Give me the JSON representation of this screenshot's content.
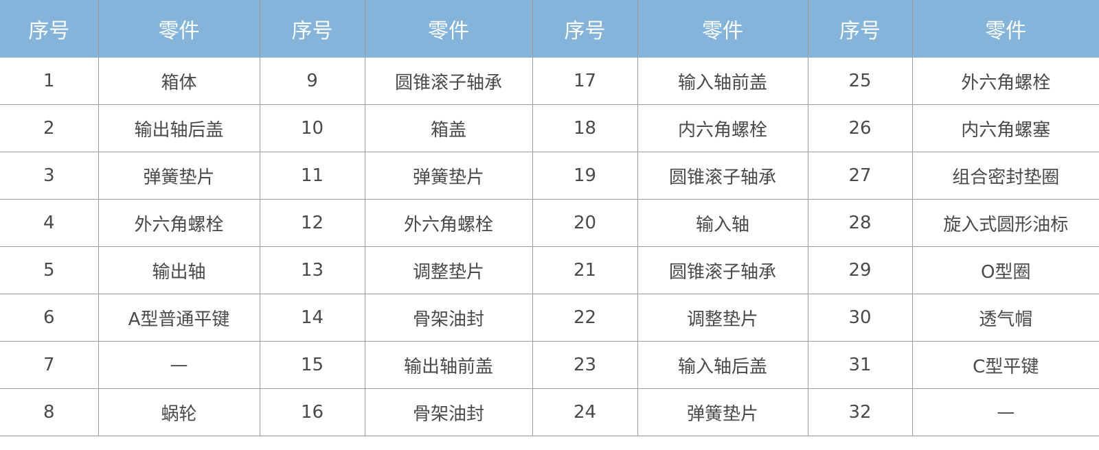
{
  "header": {
    "num": "序号",
    "part": "零件"
  },
  "theme": {
    "header_bg": "#84b4da"
  },
  "columns": [
    [
      [
        "1",
        "箱体"
      ],
      [
        "2",
        "输出轴后盖"
      ],
      [
        "3",
        "弹簧垫片"
      ],
      [
        "4",
        "外六角螺栓"
      ],
      [
        "5",
        "输出轴"
      ],
      [
        "6",
        "A型普通平键"
      ],
      [
        "7",
        "—"
      ],
      [
        "8",
        "蜗轮"
      ]
    ],
    [
      [
        "9",
        "圆锥滚子轴承"
      ],
      [
        "10",
        "箱盖"
      ],
      [
        "11",
        "弹簧垫片"
      ],
      [
        "12",
        "外六角螺栓"
      ],
      [
        "13",
        "调整垫片"
      ],
      [
        "14",
        "骨架油封"
      ],
      [
        "15",
        "输出轴前盖"
      ],
      [
        "16",
        "骨架油封"
      ]
    ],
    [
      [
        "17",
        "输入轴前盖"
      ],
      [
        "18",
        "内六角螺栓"
      ],
      [
        "19",
        "圆锥滚子轴承"
      ],
      [
        "20",
        "输入轴"
      ],
      [
        "21",
        "圆锥滚子轴承"
      ],
      [
        "22",
        "调整垫片"
      ],
      [
        "23",
        "输入轴后盖"
      ],
      [
        "24",
        "弹簧垫片"
      ]
    ],
    [
      [
        "25",
        "外六角螺栓"
      ],
      [
        "26",
        "内六角螺塞"
      ],
      [
        "27",
        "组合密封垫圈"
      ],
      [
        "28",
        "旋入式圆形油标"
      ],
      [
        "29",
        "O型圈"
      ],
      [
        "30",
        "透气帽"
      ],
      [
        "31",
        "C型平键"
      ],
      [
        "32",
        "—"
      ]
    ]
  ]
}
